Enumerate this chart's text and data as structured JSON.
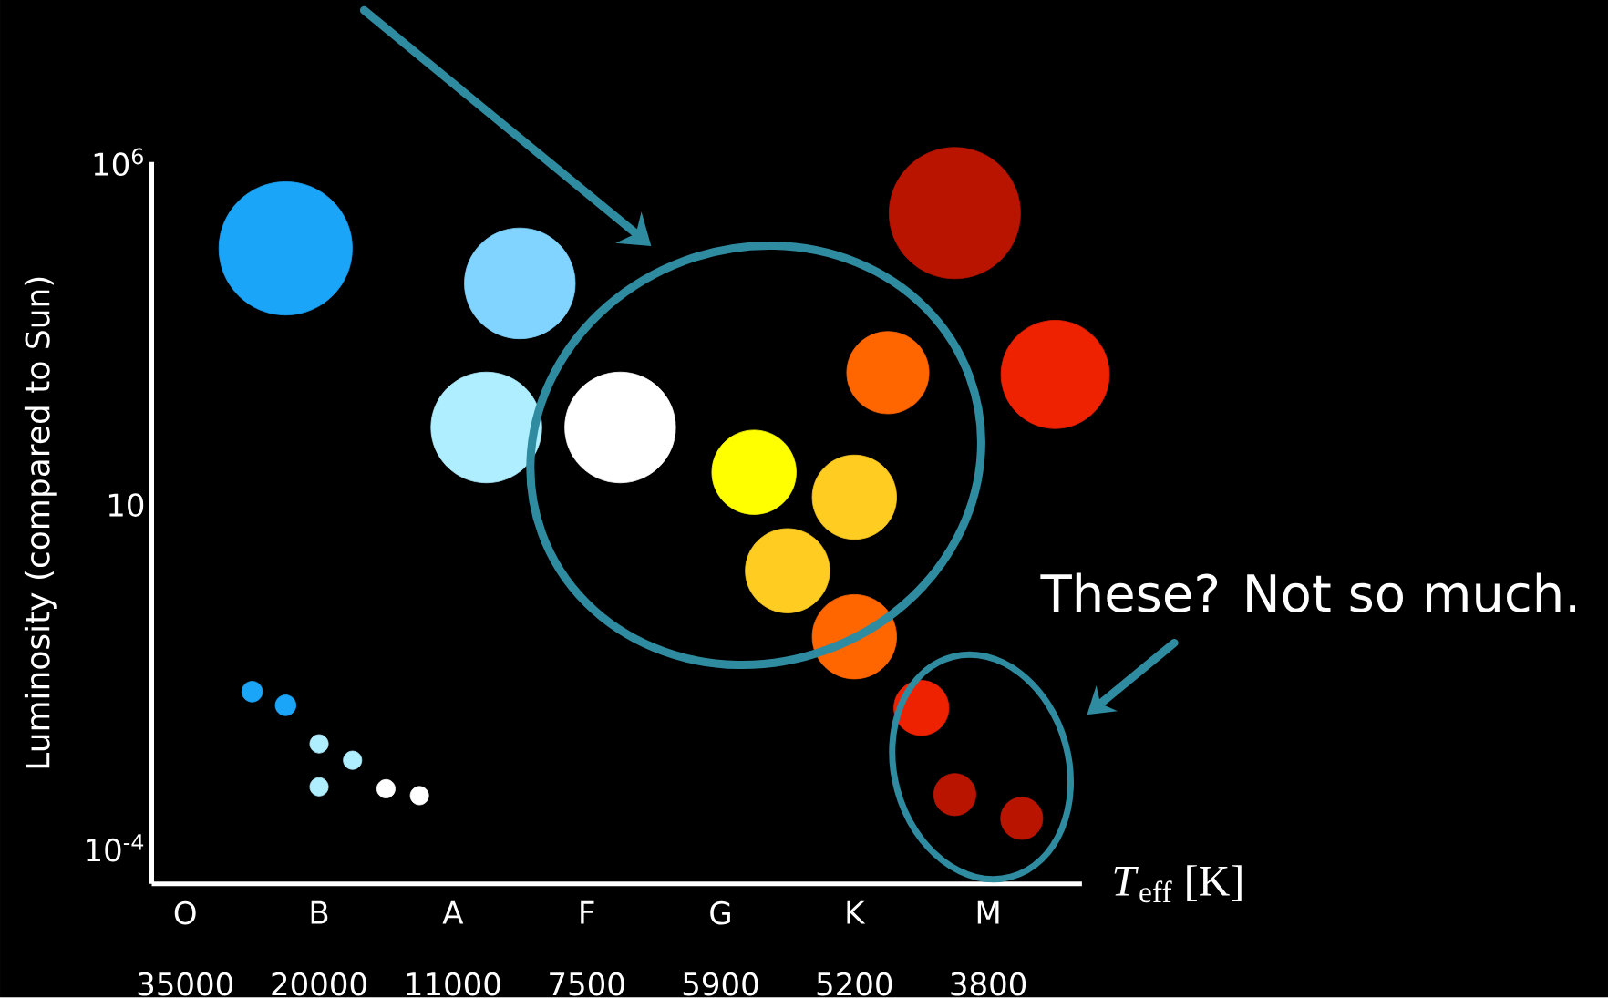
{
  "chart_data": {
    "type": "bubble",
    "xlabel": "*T*$_{eff}$ [K]",
    "ylabel": "Luminosity (compared to Sun)",
    "categories": [
      "O",
      null,
      null,
      null,
      "B",
      null,
      null,
      null,
      "A",
      null,
      null,
      null,
      "F",
      null,
      null,
      null,
      "G",
      null,
      null,
      null,
      "K",
      null,
      null,
      null,
      "M",
      null,
      null
    ],
    "series": [
      {
        "values": [
          null,
          null,
          0.019,
          55000,
          0.0033,
          0.0019,
          0.00073,
          0.00058,
          null,
          135,
          17000,
          null,
          null,
          135,
          null,
          null,
          null,
          30,
          1.1,
          null,
          13,
          850,
          0.011,
          180000,
          null,
          0.00027,
          800
        ],
        "sizes": [
          null,
          null,
          0.024,
          1,
          0.019,
          0.019,
          0.019,
          0.019,
          null,
          0.69,
          0.69,
          null,
          null,
          0.69,
          null,
          null,
          null,
          0.4,
          0.4,
          null,
          0.4,
          0.38,
          0.17,
          0.97,
          null,
          0.1,
          0.66
        ],
        "colors": [
          null,
          null,
          "#1ba5f8",
          "#1ba5f8",
          "#aeeeff",
          "#aeeeff",
          "#ffffff",
          "#ffffff",
          null,
          "#aeeeff",
          "#80d4ff",
          null,
          null,
          "#ffffff",
          null,
          null,
          null,
          "#ffff00",
          "#ffcc22",
          null,
          "#ffcc22",
          "#ff6600",
          "#ee2200",
          "#b81400",
          null,
          "#b81400",
          "#ee2200"
        ]
      },
      {
        "values": [
          null,
          null,
          null,
          0.012,
          0.00078,
          null,
          null,
          null,
          null,
          null,
          null,
          null,
          null,
          null,
          null,
          null,
          null,
          null,
          null,
          null,
          0.12,
          null,
          null,
          0.0006,
          null,
          null,
          null
        ],
        "sizes": [
          null,
          null,
          null,
          0.024,
          0.019,
          null,
          null,
          null,
          null,
          null,
          null,
          null,
          null,
          null,
          null,
          null,
          null,
          null,
          null,
          null,
          0.4,
          null,
          null,
          0.1,
          null,
          null,
          null
        ],
        "colors": [
          null,
          null,
          null,
          "#1ba5f8",
          "#aeeeff",
          null,
          null,
          null,
          null,
          null,
          null,
          null,
          null,
          null,
          null,
          null,
          null,
          null,
          null,
          null,
          "#ff6600",
          null,
          null,
          "#b81400",
          null,
          null,
          null
        ]
      }
    ],
    "log": "y",
    "ylim": [
      3e-05,
      1000000
    ],
    "yticks": [
      {
        "value": 1000000,
        "label": "10$^{6}$"
      },
      10,
      {
        "value": 0.0001,
        "label": "10$^{-4}$"
      }
    ],
    "grid": false,
    "annotations": [
      "These? Not so much.",
      "35000",
      "20000",
      "11000",
      "7500",
      "5900",
      "5200",
      "3800"
    ]
  }
}
